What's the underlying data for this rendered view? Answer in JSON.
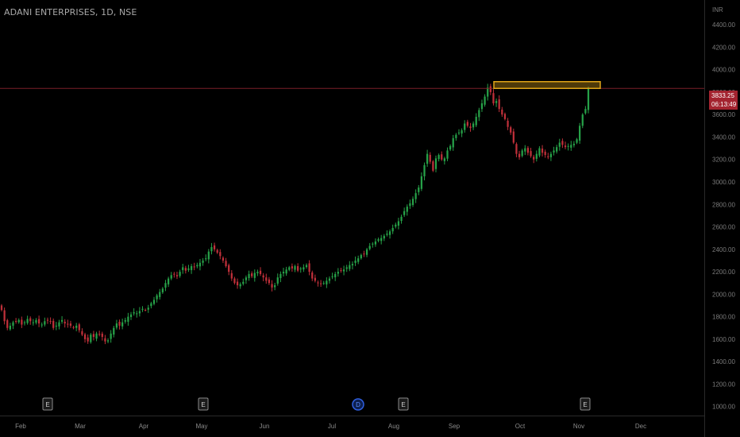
{
  "header": {
    "title": "ADANI ENTERPRISES, 1D, NSE"
  },
  "axis": {
    "currency": "INR"
  },
  "price_badge": {
    "price": "3833.25",
    "countdown": "06:13:49"
  },
  "colors": {
    "up": "#26a148",
    "down": "#c0303a",
    "resistance": "#e0a419",
    "price_line": "#7a1f28"
  },
  "chart_data": {
    "type": "candlestick",
    "title": "ADANI ENTERPRISES, 1D, NSE",
    "y_ticks": [
      1000,
      1200,
      1400,
      1600,
      1800,
      2000,
      2200,
      2400,
      2600,
      2800,
      3000,
      3200,
      3400,
      3600,
      3800,
      4000,
      4200,
      4400
    ],
    "y_tick_labels": [
      "1000.00",
      "1200.00",
      "1400.00",
      "1600.00",
      "1800.00",
      "2000.00",
      "2200.00",
      "2400.00",
      "2600.00",
      "2800.00",
      "3000.00",
      "3200.00",
      "3400.00",
      "3600.00",
      "3800.00",
      "4000.00",
      "4200.00",
      "4400.00"
    ],
    "ylim": [
      920,
      4620
    ],
    "x_ticks": [
      "Feb",
      "Mar",
      "Apr",
      "May",
      "Jun",
      "Jul",
      "Aug",
      "Sep",
      "Oct",
      "Nov",
      "Dec"
    ],
    "last_price": 3833.25,
    "resistance_zone": [
      3833,
      3893
    ],
    "events": [
      "E",
      "E",
      "D",
      "E",
      "E"
    ],
    "close": [
      1860,
      1760,
      1700,
      1720,
      1750,
      1760,
      1770,
      1730,
      1750,
      1780,
      1760,
      1750,
      1770,
      1740,
      1730,
      1760,
      1770,
      1760,
      1700,
      1720,
      1750,
      1770,
      1740,
      1730,
      1720,
      1700,
      1720,
      1680,
      1640,
      1600,
      1580,
      1640,
      1620,
      1650,
      1640,
      1620,
      1580,
      1590,
      1650,
      1700,
      1740,
      1720,
      1750,
      1770,
      1800,
      1820,
      1840,
      1830,
      1850,
      1870,
      1860,
      1880,
      1920,
      1950,
      1990,
      2020,
      2050,
      2100,
      2140,
      2170,
      2180,
      2160,
      2200,
      2240,
      2210,
      2230,
      2250,
      2240,
      2260,
      2280,
      2300,
      2320,
      2380,
      2420,
      2400,
      2370,
      2340,
      2300,
      2250,
      2200,
      2140,
      2100,
      2080,
      2090,
      2110,
      2150,
      2180,
      2160,
      2190,
      2200,
      2180,
      2150,
      2120,
      2100,
      2060,
      2080,
      2150,
      2180,
      2200,
      2220,
      2240,
      2230,
      2250,
      2210,
      2230,
      2240,
      2260,
      2200,
      2140,
      2120,
      2100,
      2090,
      2100,
      2120,
      2140,
      2160,
      2180,
      2200,
      2210,
      2220,
      2240,
      2260,
      2270,
      2300,
      2320,
      2350,
      2360,
      2400,
      2430,
      2450,
      2470,
      2490,
      2500,
      2520,
      2540,
      2560,
      2590,
      2620,
      2650,
      2690,
      2740,
      2780,
      2810,
      2850,
      2900,
      2950,
      3050,
      3150,
      3250,
      3180,
      3100,
      3210,
      3240,
      3200,
      3210,
      3280,
      3320,
      3390,
      3420,
      3440,
      3460,
      3520,
      3500,
      3480,
      3520,
      3580,
      3640,
      3700,
      3760,
      3840,
      3800,
      3700,
      3720,
      3650,
      3600,
      3560,
      3490,
      3440,
      3350,
      3250,
      3220,
      3280,
      3300,
      3260,
      3230,
      3200,
      3250,
      3300,
      3260,
      3240,
      3220,
      3250,
      3280,
      3310,
      3350,
      3330,
      3310,
      3320,
      3330,
      3340,
      3380,
      3500,
      3600,
      3650,
      3833.25
    ]
  }
}
